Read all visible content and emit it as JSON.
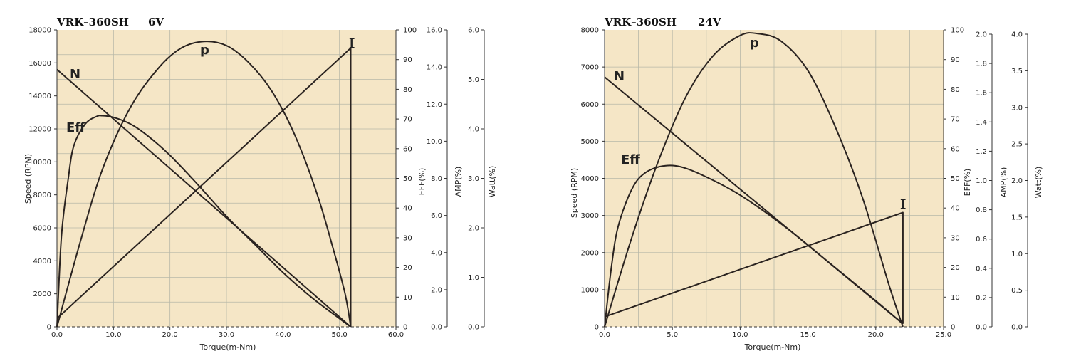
{
  "colors": {
    "plot_bg": "#f5e6c6",
    "grid": "#b7b8a8",
    "curve": "#2a2320",
    "axis": "#333333"
  },
  "chart_data": [
    {
      "type": "line",
      "title": "VRK–360SH",
      "voltage": "6V",
      "xlabel": "Torque(m-Nm)",
      "xlim": [
        0,
        60
      ],
      "xticks": [
        "0.0",
        "10.0",
        "20.0",
        "30.0",
        "40.0",
        "50.0",
        "60.0"
      ],
      "ylabel": "Speed (RPM)",
      "ylim": [
        0,
        18000
      ],
      "yticks": [
        "0",
        "2000",
        "4000",
        "6000",
        "8000",
        "10000",
        "12000",
        "14000",
        "16000",
        "18000"
      ],
      "right_axes": [
        {
          "label": "",
          "ticks": [
            "0",
            "10",
            "20",
            "30",
            "40",
            "50",
            "60",
            "70",
            "80",
            "90",
            "100"
          ]
        },
        {
          "label": "EFF(%)",
          "ticks": [
            "0.0",
            "2.0",
            "4.0",
            "6.0",
            "8.0",
            "10.0",
            "12.0",
            "14.0",
            "16.0"
          ]
        },
        {
          "label": "AMP(%)",
          "ticks": [
            "0.0",
            "1.0",
            "2.0",
            "3.0",
            "4.0",
            "5.0",
            "6.0"
          ]
        },
        {
          "label": "Watt(%)",
          "ticks": []
        }
      ],
      "grid": true,
      "series": [
        {
          "name": "N",
          "x": [
            0,
            52
          ],
          "y": [
            15600,
            0
          ]
        },
        {
          "name": "I",
          "x": [
            0,
            52,
            52
          ],
          "y": [
            500,
            16900,
            0
          ]
        },
        {
          "name": "p",
          "x": [
            0,
            4,
            8,
            13,
            18,
            22,
            26,
            30,
            34,
            38,
            42,
            46,
            49,
            51,
            52
          ],
          "y": [
            0,
            5000,
            9500,
            13300,
            15700,
            16900,
            17300,
            17050,
            16000,
            14300,
            11700,
            8100,
            4600,
            2000,
            0
          ]
        },
        {
          "name": "Eff",
          "x": [
            0,
            0.8,
            2,
            3,
            5,
            7,
            8,
            10,
            13,
            16,
            20,
            25,
            30,
            35,
            40,
            45,
            50,
            52
          ],
          "y": [
            0,
            5500,
            9000,
            11000,
            12300,
            12750,
            12800,
            12700,
            12300,
            11600,
            10400,
            8600,
            6700,
            5000,
            3300,
            1800,
            500,
            0
          ]
        }
      ]
    },
    {
      "type": "line",
      "title": "VRK–360SH",
      "voltage": "24V",
      "xlabel": "Torque(m-Nm)",
      "xlim": [
        0,
        25
      ],
      "xticks": [
        "0.0",
        "5.0",
        "10.0",
        "15.0",
        "20.0",
        "25.0"
      ],
      "ylabel": "Speed (RPM)",
      "ylim": [
        0,
        8000
      ],
      "yticks": [
        "0",
        "1000",
        "2000",
        "3000",
        "4000",
        "5000",
        "6000",
        "7000",
        "8000"
      ],
      "right_axes": [
        {
          "label": "EFF(%)",
          "ticks": [
            "0",
            "10",
            "20",
            "30",
            "40",
            "50",
            "60",
            "70",
            "80",
            "90",
            "100"
          ]
        },
        {
          "label": "AMP(%)",
          "ticks": [
            "0.0",
            "0.2",
            "0.4",
            "0.6",
            "0.8",
            "1.0",
            "1.2",
            "1.4",
            "1.6",
            "1.8",
            "2.0"
          ]
        },
        {
          "label": "Watt(%)",
          "ticks": [
            "0.0",
            "0.5",
            "1.0",
            "1.5",
            "2.0",
            "2.5",
            "3.0",
            "3.5",
            "4.0"
          ]
        }
      ],
      "grid": true,
      "series": [
        {
          "name": "N",
          "x": [
            0,
            22
          ],
          "y": [
            6730,
            80
          ]
        },
        {
          "name": "I",
          "x": [
            0,
            22,
            22
          ],
          "y": [
            270,
            3080,
            80
          ]
        },
        {
          "name": "p",
          "x": [
            0,
            2,
            4,
            6,
            8,
            10,
            11.3,
            13,
            15,
            17,
            19,
            21,
            22
          ],
          "y": [
            0,
            2400,
            4500,
            6200,
            7300,
            7850,
            7900,
            7700,
            6900,
            5400,
            3500,
            1100,
            0
          ]
        },
        {
          "name": "Eff",
          "x": [
            0,
            0.5,
            1,
            2,
            3,
            4.5,
            6,
            8,
            10,
            12,
            14,
            16,
            18,
            20,
            22
          ],
          "y": [
            0,
            1600,
            2700,
            3700,
            4150,
            4340,
            4270,
            3950,
            3550,
            3050,
            2500,
            1900,
            1300,
            700,
            80
          ]
        }
      ]
    }
  ]
}
